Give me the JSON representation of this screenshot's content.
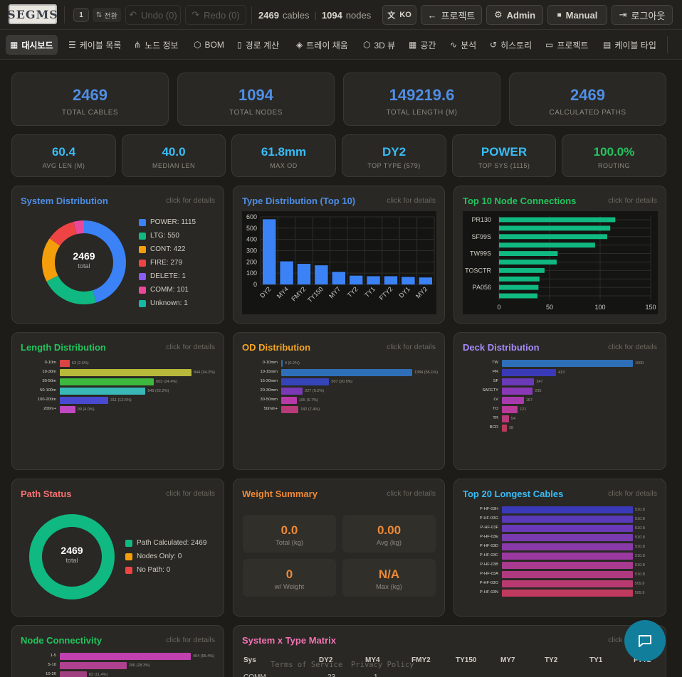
{
  "topbar": {
    "logo": "SEGMS",
    "stack_count": "1",
    "switch_label": "전환",
    "undo": "Undo (0)",
    "redo": "Redo (0)",
    "cables_num": "2469",
    "cables_lbl": "cables",
    "nodes_num": "1094",
    "nodes_lbl": "nodes",
    "lang": "KO",
    "project": "프로젝트",
    "admin": "Admin",
    "manual": "Manual",
    "logout": "로그아웃"
  },
  "nav": [
    "대시보드",
    "케이블 목록",
    "노드 정보",
    "BOM",
    "경로 계산",
    "트레이 채움",
    "3D 뷰",
    "공간",
    "분석",
    "히스토리",
    "프로젝트",
    "케이블 타입"
  ],
  "stats1": [
    {
      "value": "2469",
      "label": "TOTAL CABLES"
    },
    {
      "value": "1094",
      "label": "TOTAL NODES"
    },
    {
      "value": "149219.6",
      "label": "TOTAL LENGTH (M)"
    },
    {
      "value": "2469",
      "label": "CALCULATED PATHS"
    }
  ],
  "stats2": [
    {
      "value": "60.4",
      "label": "AVG LEN (M)",
      "color": "#38bdf8"
    },
    {
      "value": "40.0",
      "label": "MEDIAN LEN",
      "color": "#38bdf8"
    },
    {
      "value": "61.8mm",
      "label": "MAX OD",
      "color": "#38bdf8"
    },
    {
      "value": "DY2",
      "label": "TOP TYPE (579)",
      "color": "#38bdf8"
    },
    {
      "value": "POWER",
      "label": "TOP SYS (1115)",
      "color": "#38bdf8"
    },
    {
      "value": "100.0%",
      "label": "ROUTING",
      "color": "#22c55e"
    }
  ],
  "hint": "click for details",
  "system": {
    "title": "System Distribution",
    "center_value": "2469",
    "center_label": "total",
    "items": [
      {
        "label": "POWER: 1115",
        "value": 1115,
        "color": "#3b82f6"
      },
      {
        "label": "LTG: 550",
        "value": 550,
        "color": "#10b981"
      },
      {
        "label": "CONT: 422",
        "value": 422,
        "color": "#f59e0b"
      },
      {
        "label": "FIRE: 279",
        "value": 279,
        "color": "#ef4444"
      },
      {
        "label": "DELETE: 1",
        "value": 1,
        "color": "#8b5cf6"
      },
      {
        "label": "COMM: 101",
        "value": 101,
        "color": "#ec4899"
      },
      {
        "label": "Unknown: 1",
        "value": 1,
        "color": "#14b8a6"
      }
    ]
  },
  "type_dist": {
    "title": "Type Distribution (Top 10)"
  },
  "node_conn": {
    "title": "Top 10 Node Connections"
  },
  "length_dist": {
    "title": "Length Distribution"
  },
  "od_dist": {
    "title": "OD Distribution"
  },
  "deck_dist": {
    "title": "Deck Distribution"
  },
  "path_status": {
    "title": "Path Status",
    "center_value": "2469",
    "center_label": "total",
    "items": [
      {
        "label": "Path Calculated: 2469",
        "color": "#10b981"
      },
      {
        "label": "Nodes Only: 0",
        "color": "#f59e0b"
      },
      {
        "label": "No Path: 0",
        "color": "#ef4444"
      }
    ]
  },
  "weight": {
    "title": "Weight Summary",
    "boxes": [
      {
        "value": "0.0",
        "label": "Total (kg)"
      },
      {
        "value": "0.00",
        "label": "Avg (kg)"
      },
      {
        "value": "0",
        "label": "w/ Weight"
      },
      {
        "value": "N/A",
        "label": "Max (kg)"
      }
    ]
  },
  "longest": {
    "title": "Top 20 Longest Cables"
  },
  "node_connectivity": {
    "title": "Node Connectivity"
  },
  "matrix": {
    "title": "System x Type Matrix",
    "headers": [
      "Sys",
      "DY2",
      "MY4",
      "FMY2",
      "TY150",
      "MY7",
      "TY2",
      "TY1",
      "FTY2"
    ],
    "row1": [
      "COMM",
      "23",
      "1"
    ]
  },
  "footer": {
    "terms": "Terms of Service",
    "privacy": "Privacy Policy"
  },
  "chart_data": [
    {
      "type": "bar",
      "title": "Type Distribution (Top 10)",
      "categories": [
        "DY2",
        "MY4",
        "FMY2",
        "TY150",
        "MY7",
        "TY2",
        "TY1",
        "FTY2",
        "DY1",
        "MY2"
      ],
      "values": [
        579,
        205,
        183,
        170,
        112,
        78,
        73,
        73,
        67,
        62
      ],
      "ylim": [
        0,
        600
      ],
      "yticks": [
        0,
        100,
        200,
        300,
        400,
        500,
        600
      ],
      "color": "#3b82f6"
    },
    {
      "type": "bar",
      "orientation": "horizontal",
      "title": "Top 10 Node Connections",
      "categories": [
        "PR130",
        "",
        "SF99S",
        "",
        "TW99S",
        "",
        "TOSCTR",
        "",
        "PA056",
        ""
      ],
      "values": [
        115,
        110,
        107,
        95,
        58,
        57,
        45,
        40,
        39,
        38
      ],
      "xlim": [
        0,
        150
      ],
      "xticks": [
        0,
        50,
        100,
        150
      ],
      "color": "#10b981"
    },
    {
      "type": "bar",
      "orientation": "horizontal",
      "title": "Length Distribution",
      "categories": [
        "0-10m",
        "10-30m",
        "30-50m",
        "50-100m",
        "100-200m",
        "200m+"
      ],
      "values": [
        63,
        844,
        603,
        549,
        311,
        99
      ],
      "labels": [
        "63 (2.6%)",
        "844 (34.2%)",
        "603 (24.4%)",
        "549 (22.2%)",
        "311 (12.6%)",
        "99 (4.0%)"
      ],
      "colors": [
        "#d94444",
        "#b8b83a",
        "#3fb83f",
        "#3ab8b8",
        "#4a4ad0",
        "#c048c0"
      ]
    },
    {
      "type": "bar",
      "orientation": "horizontal",
      "title": "OD Distribution",
      "categories": [
        "0-10mm",
        "10-15mm",
        "15-20mm",
        "20-30mm",
        "30-50mm",
        "50mm+"
      ],
      "values": [
        4,
        1384,
        507,
        227,
        165,
        182
      ],
      "labels": [
        "4 (0.2%)",
        "1384 (56.1%)",
        "507 (20.5%)",
        "227 (9.2%)",
        "165 (6.7%)",
        "182 (7.4%)"
      ],
      "colors": [
        "#2e6fb8",
        "#2e6fb8",
        "#3545b8",
        "#7a3ab8",
        "#b83aa8",
        "#b83a7a"
      ]
    },
    {
      "type": "bar",
      "orientation": "horizontal",
      "title": "Deck Distribution",
      "categories": [
        "TW",
        "PR",
        "SF",
        "SAFETY",
        "LV",
        "TO",
        "TR",
        "BCR"
      ],
      "values": [
        1000,
        413,
        247,
        235,
        167,
        121,
        54,
        38
      ],
      "colors": [
        "#2e6fb8",
        "#3a3ab8",
        "#6a3ab8",
        "#8a3ab8",
        "#a83ab0",
        "#b83a9a",
        "#b83a7a",
        "#b83a5a"
      ]
    },
    {
      "type": "bar",
      "orientation": "horizontal",
      "title": "Top 20 Longest Cables",
      "categories": [
        "P-HF-03H",
        "P-HF-03G",
        "P-HF-03F",
        "P-HF-03E",
        "P-HF-03D",
        "P-HF-03C",
        "P-HF-03B",
        "P-HF-03A",
        "P-HF-03O",
        "P-HF-03N"
      ],
      "values": [
        510.8,
        510.8,
        510.8,
        510.8,
        510.8,
        510.8,
        510.8,
        510.8,
        509.9,
        509.9
      ],
      "labels": [
        "510.8",
        "510.8",
        "510.8",
        "510.8",
        "510.8",
        "510.8",
        "510.8",
        "510.8",
        "509.9",
        "509.9"
      ],
      "colors": [
        "#3a3ab8",
        "#5a3ab8",
        "#6a3ab8",
        "#7a3ab0",
        "#8a3aa8",
        "#9a3aa0",
        "#a83a90",
        "#b03a80",
        "#b83a70",
        "#c03a60"
      ]
    },
    {
      "type": "bar",
      "orientation": "horizontal",
      "title": "Node Connectivity",
      "categories": [
        "1-5",
        "5-10",
        "10-20"
      ],
      "values": [
        404,
        206,
        83
      ],
      "labels": [
        "404 (55.4%)",
        "206 (28.3%)",
        "83 (11.4%)"
      ],
      "colors": [
        "#c040b0",
        "#b04090",
        "#a04080"
      ]
    }
  ]
}
